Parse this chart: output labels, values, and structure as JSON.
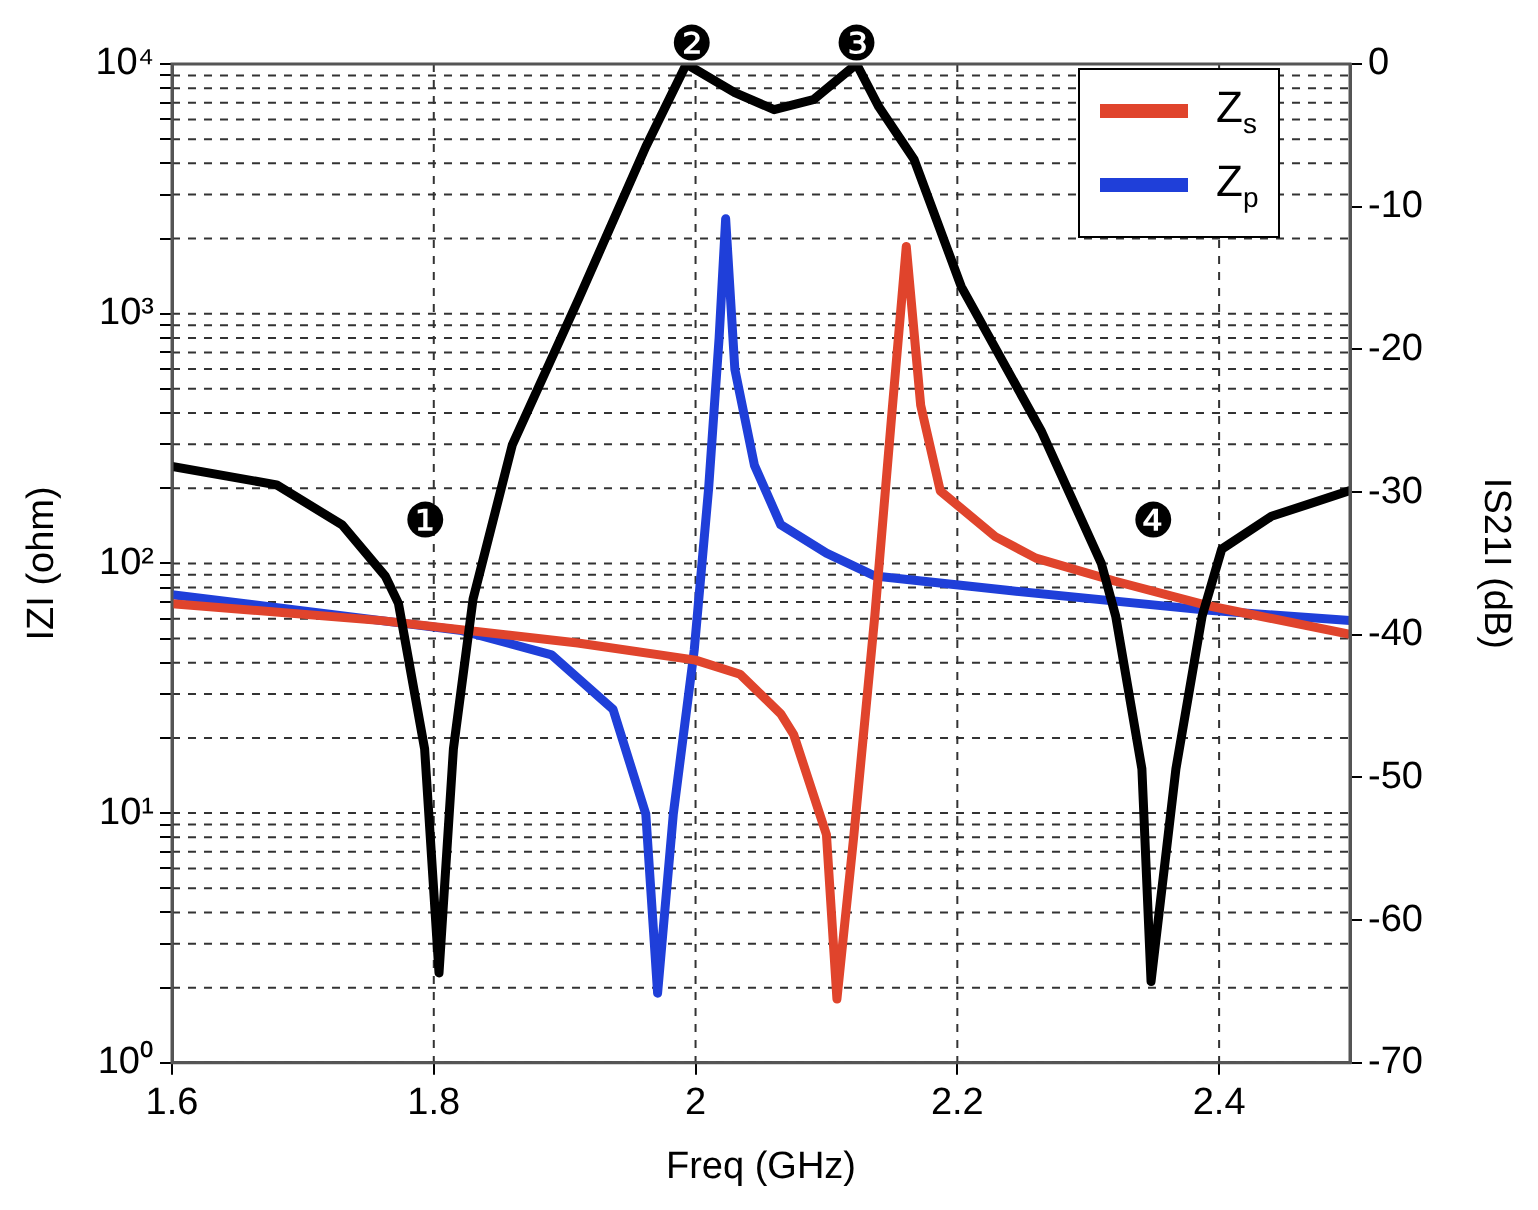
{
  "chart_data": {
    "type": "line",
    "xlabel": "Freq (GHz)",
    "ylabel": "IZI (ohm)",
    "y2label": "IS21I (dB)",
    "log": "y",
    "grid": true,
    "legend": "top right",
    "line_style": "solid",
    "xlim": [
      1.6,
      2.5
    ],
    "xticks": [
      1.6,
      1.8,
      2,
      2.2,
      2.4
    ],
    "ylim": [
      1,
      10000
    ],
    "yticks": [
      {
        "value": 1,
        "label": "10⁰"
      },
      {
        "value": 2,
        "label": null
      },
      {
        "value": 3,
        "label": null
      },
      {
        "value": 4,
        "label": null
      },
      {
        "value": 5,
        "label": null
      },
      {
        "value": 6,
        "label": null
      },
      {
        "value": 7,
        "label": null
      },
      {
        "value": 8,
        "label": null
      },
      {
        "value": 9,
        "label": null
      },
      {
        "value": 10,
        "label": "10¹"
      },
      {
        "value": 20,
        "label": null
      },
      {
        "value": 30,
        "label": null
      },
      {
        "value": 40,
        "label": null
      },
      {
        "value": 50,
        "label": null
      },
      {
        "value": 60,
        "label": null
      },
      {
        "value": 70,
        "label": null
      },
      {
        "value": 80,
        "label": null
      },
      {
        "value": 90,
        "label": null
      },
      {
        "value": 100,
        "label": "10²"
      },
      {
        "value": 200,
        "label": null
      },
      {
        "value": 300,
        "label": null
      },
      {
        "value": 400,
        "label": null
      },
      {
        "value": 500,
        "label": null
      },
      {
        "value": 600,
        "label": null
      },
      {
        "value": 700,
        "label": null
      },
      {
        "value": 800,
        "label": null
      },
      {
        "value": 900,
        "label": null
      },
      {
        "value": 1000,
        "label": "10³"
      },
      {
        "value": 2000,
        "label": null
      },
      {
        "value": 3000,
        "label": null
      },
      {
        "value": 4000,
        "label": null
      },
      {
        "value": 5000,
        "label": null
      },
      {
        "value": 6000,
        "label": null
      },
      {
        "value": 7000,
        "label": null
      },
      {
        "value": 8000,
        "label": null
      },
      {
        "value": 9000,
        "label": null
      },
      {
        "value": 10000,
        "label": "10⁴"
      }
    ],
    "y2lim": [
      -70,
      0
    ],
    "y2ticks": [
      -70,
      -60,
      -50,
      -40,
      -30,
      -20,
      -10,
      0
    ],
    "annotations": [
      "❶",
      {
        "text": "❷",
        "x": 1.997,
        "y": 10000
      },
      {
        "text": "❸",
        "x": 2.123,
        "y": 10000
      },
      "❹"
    ],
    "series": [
      {
        "name": "Z$_{s}$",
        "color": "#e0442c",
        "x": [
          1.6,
          1.76,
          1.91,
          2.0,
          2.034,
          2.065,
          2.075,
          2.1,
          2.108,
          2.121,
          2.137,
          2.15,
          2.161,
          2.172,
          2.187,
          2.229,
          2.26,
          2.32,
          2.39,
          2.5
        ],
        "values": [
          69,
          59,
          48,
          41,
          36,
          25,
          20.6,
          8.2,
          1.8,
          8.2,
          62,
          400,
          1860,
          430,
          195,
          128,
          105,
          85,
          68,
          52
        ]
      },
      {
        "name": "Z$_{p}$",
        "color": "#1f3fd9",
        "x": [
          1.6,
          1.76,
          1.82,
          1.89,
          1.937,
          1.962,
          1.971,
          1.983,
          1.999,
          2.01,
          2.018,
          2.023,
          2.03,
          2.045,
          2.065,
          2.1,
          2.137,
          2.238,
          2.39,
          2.5
        ],
        "values": [
          75,
          59,
          54,
          43,
          26,
          9.9,
          1.9,
          9.9,
          45,
          200,
          800,
          2400,
          600,
          247,
          143,
          110,
          89,
          78,
          65,
          59
        ]
      },
      {
        "color": "#000000",
        "axis": "y2",
        "x": [
          1.6,
          1.68,
          1.73,
          1.763,
          1.773,
          1.793,
          1.804,
          1.815,
          1.83,
          1.86,
          1.911,
          1.962,
          1.993,
          2.03,
          2.06,
          2.09,
          2.123,
          2.14,
          2.167,
          2.203,
          2.264,
          2.31,
          2.321,
          2.341,
          2.348,
          2.367,
          2.387,
          2.402,
          2.44,
          2.5
        ],
        "values": [
          -28.2,
          -29.5,
          -32.3,
          -35.9,
          -37.8,
          -48,
          -63.7,
          -48,
          -37.5,
          -26.7,
          -16.4,
          -5.8,
          0,
          -2,
          -3.2,
          -2.5,
          0,
          -3,
          -6.7,
          -15.6,
          -25.7,
          -35,
          -38.7,
          -49.4,
          -64.3,
          -49.4,
          -38.7,
          -34,
          -31.7,
          -29.9
        ]
      }
    ]
  }
}
